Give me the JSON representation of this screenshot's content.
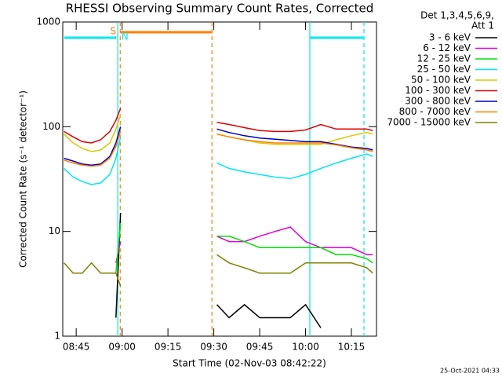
{
  "chart_data": {
    "type": "line",
    "title": "RHESSI Observing Summary Count Rates, Corrected",
    "xlabel": "Start Time (02-Nov-03 08:42:22)",
    "ylabel": "Corrected Count Rate (s⁻¹ detector⁻¹)",
    "legend_header": [
      "Det 1,3,4,5,6,9,",
      "Att 1"
    ],
    "footer": "25-Oct-2021 04:33",
    "log_y": true,
    "xlim": [
      520.6,
      623.2
    ],
    "ylim": [
      1,
      1000
    ],
    "xticks": [
      {
        "value": 525,
        "label": "08:45"
      },
      {
        "value": 540,
        "label": "09:00"
      },
      {
        "value": 555,
        "label": "09:15"
      },
      {
        "value": 570,
        "label": "09:30"
      },
      {
        "value": 585,
        "label": "09:45"
      },
      {
        "value": 600,
        "label": "10:00"
      },
      {
        "value": 615,
        "label": "10:15"
      }
    ],
    "yticks": [
      1,
      10,
      100,
      1000
    ],
    "x": [
      521,
      524,
      527,
      530,
      533,
      536,
      538,
      539.5,
      555,
      571,
      575,
      580,
      585,
      590,
      595,
      600,
      605,
      610,
      615,
      620,
      622
    ],
    "series": [
      {
        "name": "3 - 6 keV",
        "color": "#000000",
        "values": [
          null,
          null,
          null,
          null,
          null,
          null,
          1.5,
          15,
          null,
          2,
          1.5,
          2,
          1.5,
          1.5,
          1.5,
          2,
          1.2,
          null,
          null,
          null,
          null
        ]
      },
      {
        "name": "6 - 12 keV",
        "color": "#e000e0",
        "values": [
          null,
          null,
          null,
          null,
          null,
          null,
          5,
          8,
          null,
          9,
          8,
          8,
          9,
          10,
          11,
          8,
          7,
          7,
          7,
          6,
          6
        ]
      },
      {
        "name": "12 - 25 keV",
        "color": "#00e000",
        "values": [
          null,
          null,
          null,
          null,
          null,
          null,
          4,
          12,
          null,
          9,
          9,
          8,
          7,
          7,
          7,
          7,
          7,
          6,
          6,
          5.5,
          5
        ]
      },
      {
        "name": "25 - 50 keV",
        "color": "#00e8f0",
        "values": [
          40,
          33,
          30,
          28,
          29,
          35,
          50,
          80,
          null,
          45,
          40,
          37,
          35,
          33,
          32,
          35,
          40,
          45,
          50,
          55,
          52
        ]
      },
      {
        "name": "50 - 100 keV",
        "color": "#d8c800",
        "values": [
          85,
          70,
          62,
          58,
          60,
          70,
          95,
          130,
          null,
          85,
          80,
          75,
          70,
          68,
          68,
          68,
          68,
          75,
          82,
          88,
          85
        ]
      },
      {
        "name": "100 - 300 keV",
        "color": "#e00000",
        "values": [
          90,
          80,
          72,
          70,
          75,
          90,
          115,
          150,
          null,
          110,
          105,
          98,
          92,
          90,
          90,
          93,
          105,
          95,
          95,
          95,
          92
        ]
      },
      {
        "name": "300 - 800 keV",
        "color": "#0000c0",
        "values": [
          50,
          47,
          44,
          43,
          44,
          52,
          70,
          100,
          null,
          95,
          88,
          82,
          78,
          76,
          74,
          72,
          72,
          68,
          64,
          62,
          60
        ]
      },
      {
        "name": "800 - 7000 keV",
        "color": "#ff8000",
        "values": [
          48,
          45,
          43,
          42,
          43,
          50,
          65,
          90,
          null,
          85,
          80,
          75,
          72,
          70,
          70,
          70,
          70,
          67,
          63,
          60,
          58
        ]
      },
      {
        "name": "7000 - 15000 keV",
        "color": "#808000",
        "values": [
          5,
          4,
          4,
          5,
          4,
          4,
          4,
          3,
          null,
          6,
          5,
          4.5,
          4,
          4,
          4,
          5,
          5,
          5,
          5,
          4.5,
          4
        ]
      }
    ],
    "vlines": [
      {
        "x": 538.6,
        "color": "#00e8f0",
        "dashed": false
      },
      {
        "x": 539.4,
        "color": "#ff8000",
        "dashed": true
      },
      {
        "x": 569.4,
        "color": "#ff8000",
        "dashed": true
      },
      {
        "x": 601.4,
        "color": "#00e8f0",
        "dashed": false
      },
      {
        "x": 619.1,
        "color": "#00e8f0",
        "dashed": true
      }
    ],
    "flags": [
      {
        "label": "S",
        "color": "#ff8000",
        "spans": [
          [
            539.4,
            569.4
          ]
        ]
      },
      {
        "label": "N",
        "color": "#00e8f0",
        "spans": [
          [
            521.1,
            538.1
          ],
          [
            601.4,
            619.1
          ]
        ]
      }
    ]
  }
}
